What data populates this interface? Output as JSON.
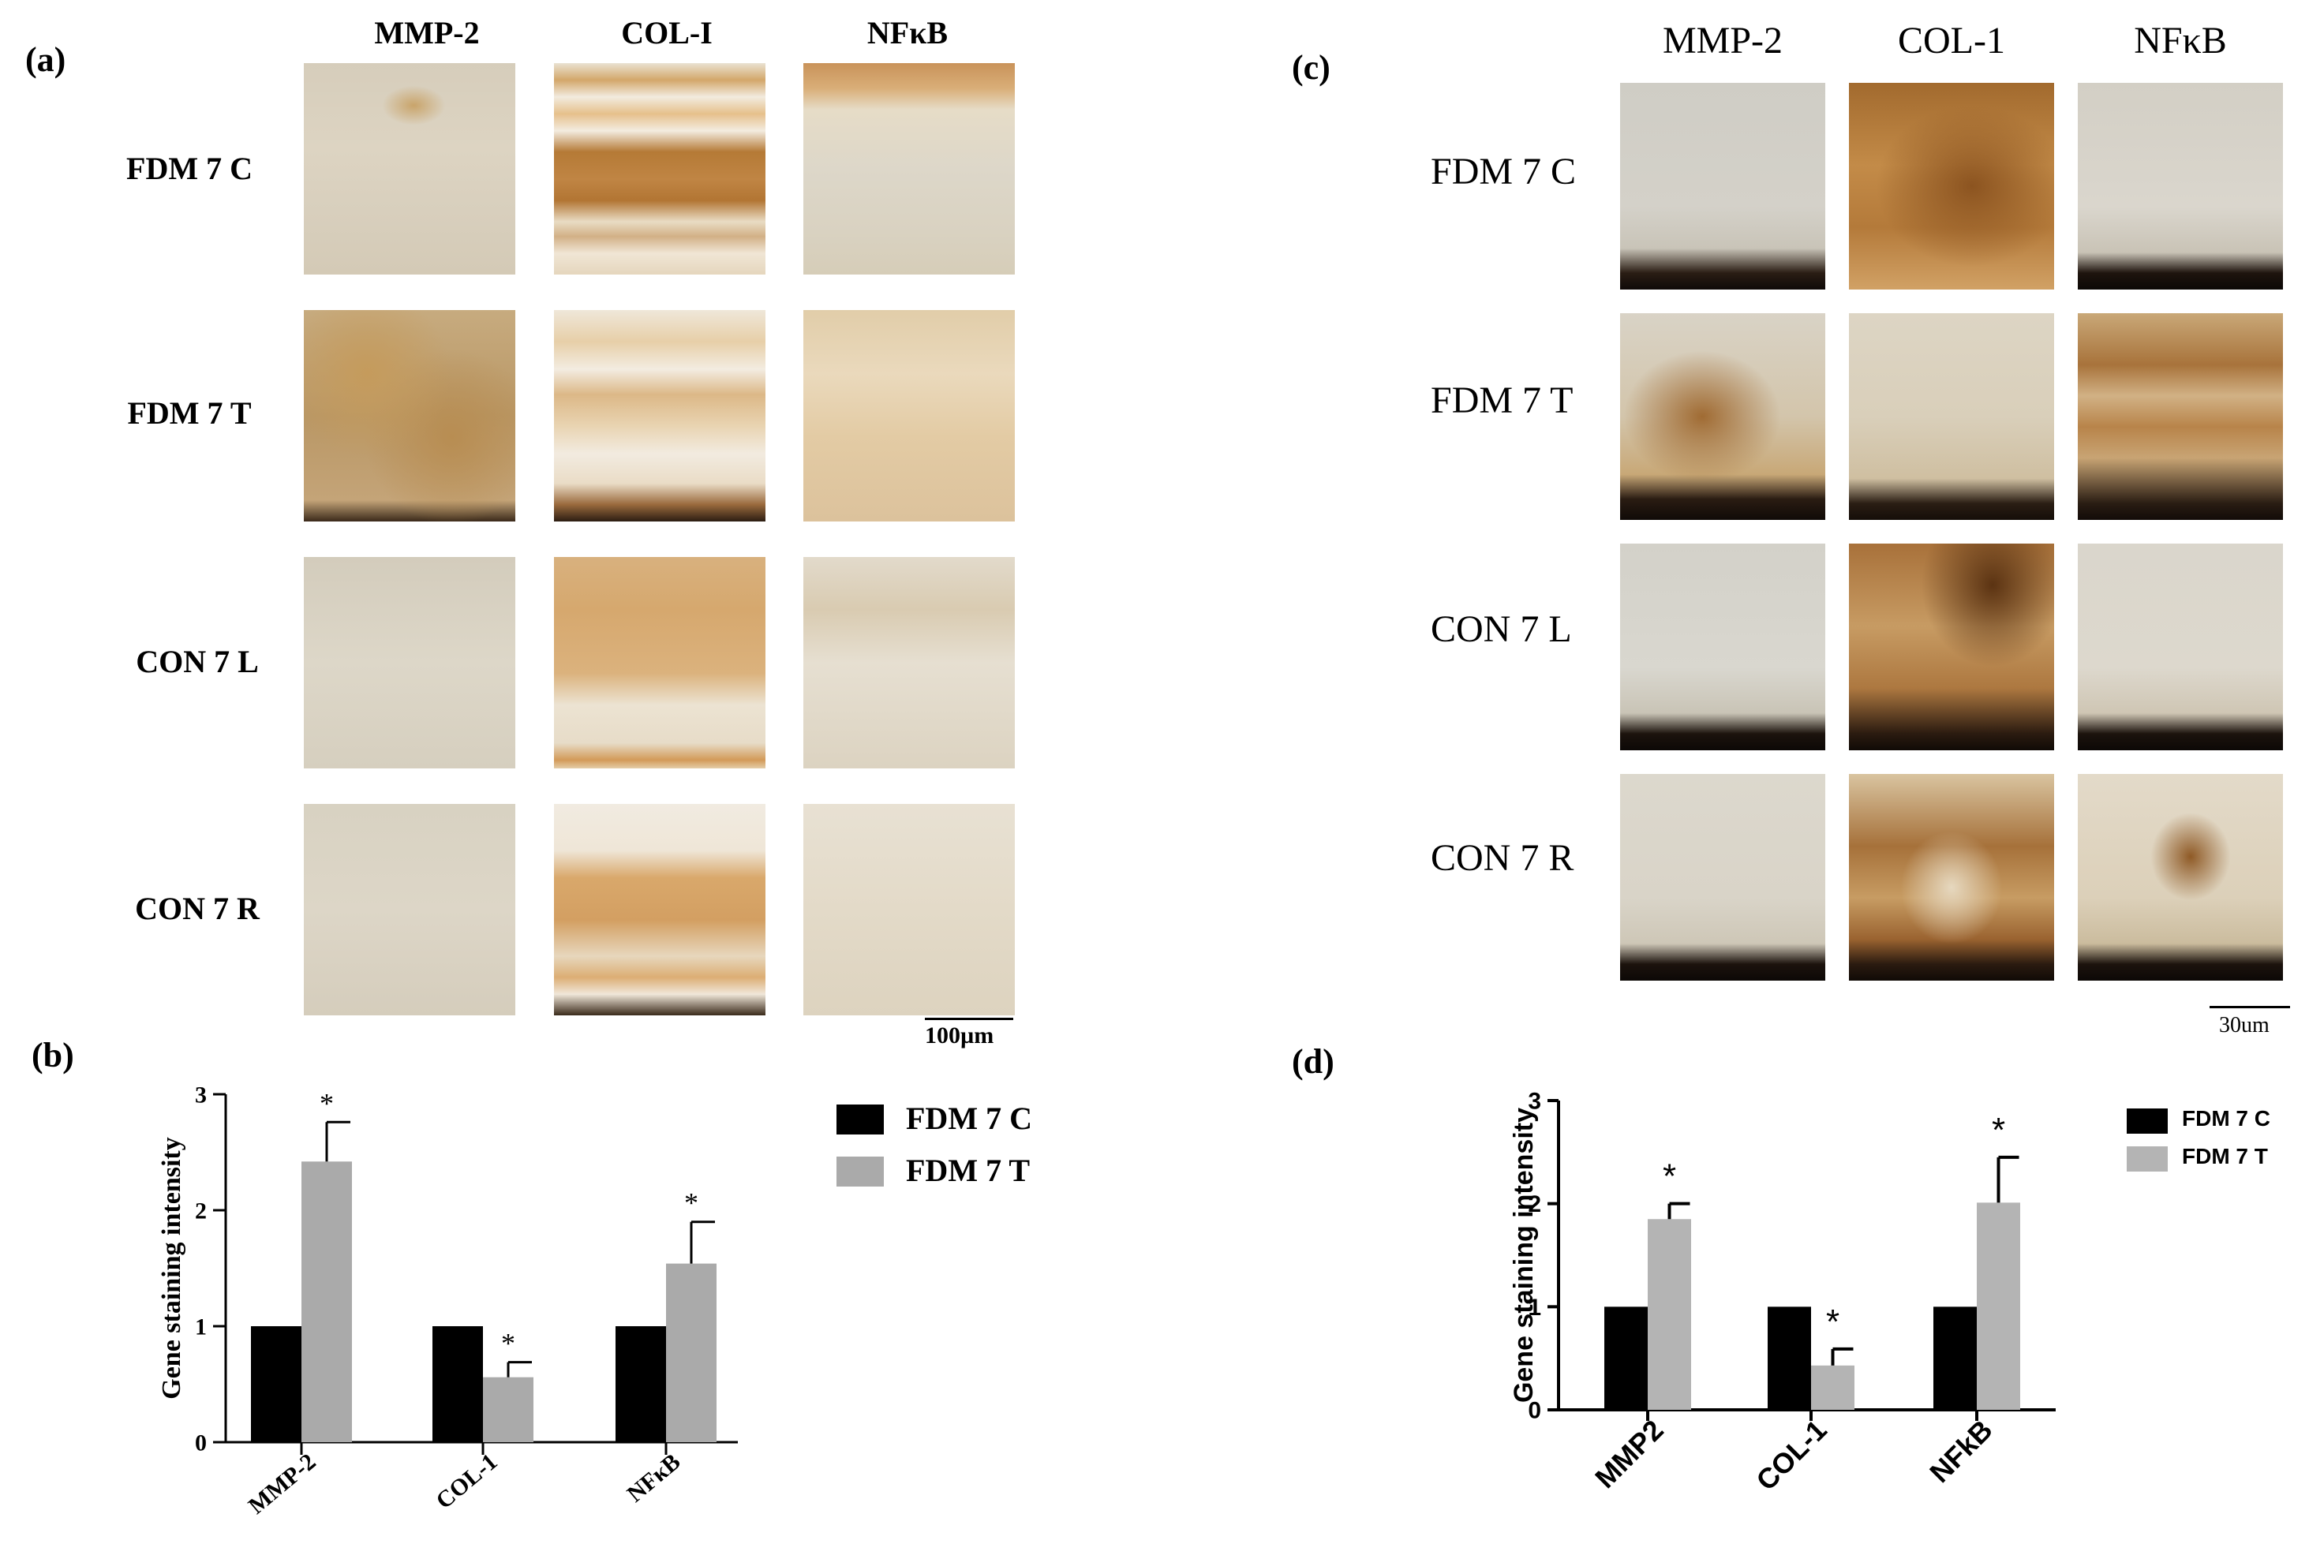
{
  "panel_a": {
    "label": "(a)",
    "columns": [
      "MMP-2",
      "COL-I",
      "NFκB"
    ],
    "rows": [
      "FDM 7  C",
      "FDM 7  T",
      "CON 7  L",
      "CON 7  R"
    ],
    "scale_bar": "100µm"
  },
  "panel_c": {
    "label": "(c)",
    "columns": [
      "MMP-2",
      "COL-1",
      "NFκB"
    ],
    "rows": [
      "FDM 7 C",
      "FDM 7 T",
      "CON 7 L",
      "CON 7 R"
    ],
    "scale_bar": "30um"
  },
  "panel_b": {
    "label": "(b)",
    "ylabel": "Gene staining intensity",
    "yticks": [
      "0",
      "1",
      "2",
      "3"
    ],
    "legend": [
      "FDM 7  C",
      "FDM 7  T"
    ],
    "star": "*",
    "colors": {
      "control": "#000000",
      "treated": "#aaaaaa"
    }
  },
  "panel_d": {
    "label": "(d)",
    "ylabel": "Gene staining intensity",
    "yticks": [
      "0",
      "1",
      "2",
      "3"
    ],
    "legend": [
      "FDM 7 C",
      "FDM 7 T"
    ],
    "star": "*",
    "colors": {
      "control": "#000000",
      "treated": "#b4b4b4"
    }
  },
  "chart_data": [
    {
      "type": "bar",
      "title": "",
      "categories": [
        "MMP-2",
        "COL-1",
        "NFκB"
      ],
      "series": [
        {
          "name": "FDM 7  C",
          "values": [
            1,
            1,
            1
          ],
          "error": [
            0,
            0,
            0
          ]
        },
        {
          "name": "FDM 7  T",
          "values": [
            2.42,
            0.56,
            1.54
          ],
          "error": [
            0.34,
            0.13,
            0.36
          ]
        }
      ],
      "xlabel": "",
      "ylabel": "Gene staining intensity",
      "ylim": [
        0,
        3
      ],
      "significance": [
        true,
        true,
        true
      ],
      "grid": false,
      "legend_position": "top-right-outside"
    },
    {
      "type": "bar",
      "title": "",
      "categories": [
        "MMP2",
        "COL-1",
        "NFkB"
      ],
      "series": [
        {
          "name": "FDM 7 C",
          "values": [
            1,
            1,
            1
          ],
          "error": [
            0,
            0,
            0
          ]
        },
        {
          "name": "FDM 7 T",
          "values": [
            1.85,
            0.43,
            2.01
          ],
          "error": [
            0.15,
            0.16,
            0.44
          ]
        }
      ],
      "xlabel": "",
      "ylabel": "Gene staining intensity",
      "ylim": [
        0,
        3
      ],
      "significance": [
        true,
        true,
        true
      ],
      "grid": false,
      "legend_position": "top-right-outside"
    }
  ]
}
